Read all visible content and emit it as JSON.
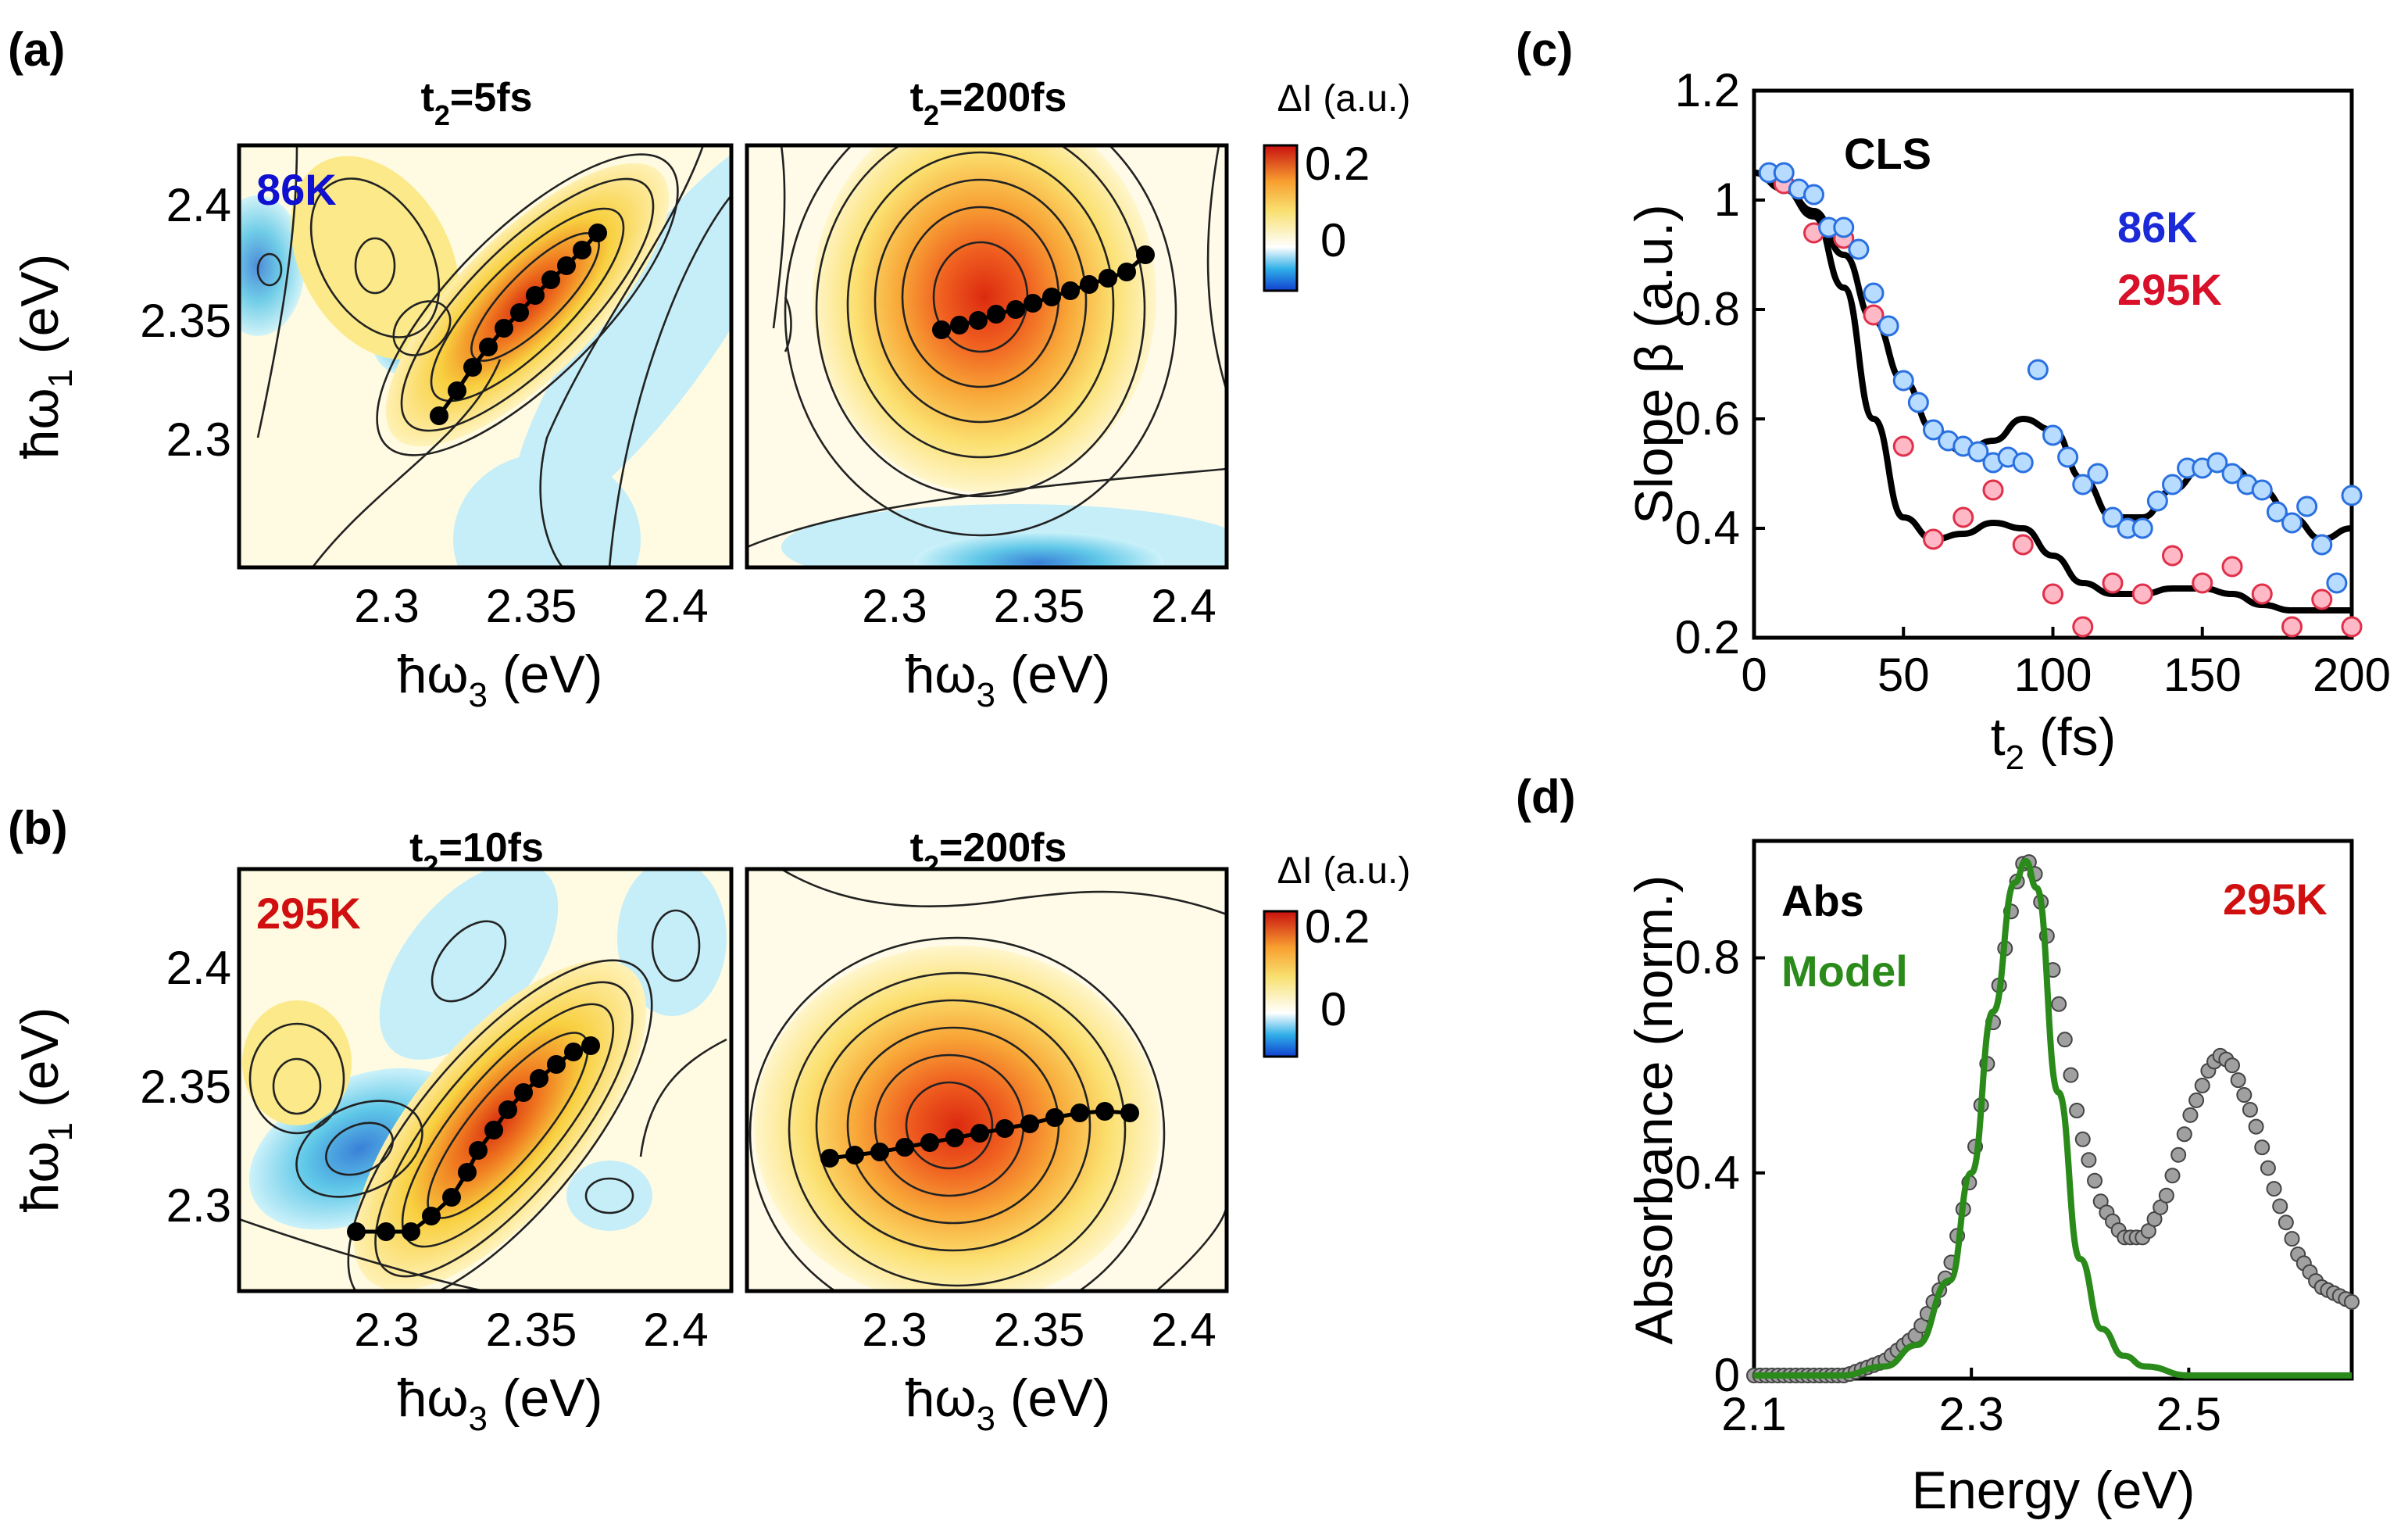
{
  "panels": {
    "a": {
      "label": "(a)",
      "titles": [
        "t",
        "=5fs",
        "t",
        "=200fs"
      ],
      "temp": "86K",
      "temp_color": "#1010d0",
      "colorbar_title": "ΔI (a.u.)",
      "colorbar_ticks": [
        "0.2",
        "0"
      ]
    },
    "b": {
      "label": "(b)",
      "titles": [
        "t",
        "=10fs",
        "t",
        "=200fs"
      ],
      "temp": "295K",
      "temp_color": "#d01010",
      "colorbar_title": "ΔI (a.u.)",
      "colorbar_ticks": [
        "0.2",
        "0"
      ]
    },
    "c": {
      "label": "(c)"
    },
    "d": {
      "label": "(d)"
    }
  },
  "twod_axes": {
    "y_ticks": [
      "2.4",
      "2.35",
      "2.3"
    ],
    "x_ticks": [
      "2.3",
      "2.35",
      "2.4"
    ],
    "y_label": "ħω",
    "y_label_sub": "1",
    "y_label_tail": " (eV)",
    "x_label": "ħω",
    "x_label_sub": "3",
    "x_label_tail": " (eV)",
    "sub2": "2"
  },
  "chart_data": [
    {
      "type": "scatter",
      "panel": "c",
      "annotation": "CLS",
      "xlabel": "t",
      "xlabel_sub": "2",
      "xlabel_tail": " (fs)",
      "ylabel": "Slope β (a.u.)",
      "xlim": [
        0,
        200
      ],
      "ylim": [
        0.2,
        1.2
      ],
      "x_ticks": [
        "0",
        "50",
        "100",
        "150",
        "200"
      ],
      "y_ticks": [
        "1.2",
        "1",
        "0.8",
        "0.6",
        "0.4",
        "0.2"
      ],
      "series": [
        {
          "name": "86K",
          "color": "#1a2ad8",
          "x": [
            5,
            10,
            15,
            20,
            25,
            30,
            35,
            40,
            45,
            50,
            55,
            60,
            65,
            70,
            75,
            80,
            85,
            90,
            95,
            100,
            105,
            110,
            115,
            120,
            125,
            130,
            135,
            140,
            145,
            150,
            155,
            160,
            165,
            170,
            175,
            180,
            185,
            190,
            195,
            200
          ],
          "y": [
            1.05,
            1.05,
            1.02,
            1.01,
            0.95,
            0.95,
            0.91,
            0.83,
            0.77,
            0.67,
            0.63,
            0.58,
            0.56,
            0.55,
            0.54,
            0.52,
            0.53,
            0.52,
            0.69,
            0.57,
            0.53,
            0.48,
            0.5,
            0.42,
            0.4,
            0.4,
            0.45,
            0.48,
            0.51,
            0.51,
            0.52,
            0.5,
            0.48,
            0.47,
            0.43,
            0.41,
            0.44,
            0.37,
            0.3,
            0.46
          ]
        },
        {
          "name": "295K",
          "color": "#d8102a",
          "x": [
            10,
            20,
            30,
            40,
            50,
            60,
            70,
            80,
            90,
            100,
            110,
            120,
            130,
            140,
            150,
            160,
            170,
            180,
            190,
            200
          ],
          "y": [
            1.03,
            0.94,
            0.93,
            0.79,
            0.55,
            0.38,
            0.42,
            0.47,
            0.37,
            0.28,
            0.22,
            0.3,
            0.28,
            0.35,
            0.3,
            0.33,
            0.28,
            0.22,
            0.27,
            0.22
          ]
        },
        {
          "name": "fit-86K",
          "color": "#000000",
          "x": [
            0,
            10,
            20,
            30,
            40,
            50,
            60,
            70,
            80,
            90,
            100,
            110,
            120,
            130,
            140,
            150,
            160,
            170,
            180,
            190,
            200
          ],
          "y": [
            1.05,
            1.02,
            0.98,
            0.9,
            0.78,
            0.67,
            0.58,
            0.54,
            0.56,
            0.6,
            0.58,
            0.49,
            0.42,
            0.42,
            0.47,
            0.51,
            0.51,
            0.47,
            0.42,
            0.38,
            0.4
          ]
        },
        {
          "name": "fit-295K",
          "color": "#000000",
          "x": [
            0,
            10,
            20,
            30,
            40,
            50,
            60,
            70,
            80,
            90,
            100,
            110,
            120,
            130,
            140,
            150,
            160,
            170,
            180,
            190,
            200
          ],
          "y": [
            1.05,
            1.02,
            0.97,
            0.84,
            0.6,
            0.42,
            0.38,
            0.39,
            0.41,
            0.4,
            0.35,
            0.3,
            0.28,
            0.28,
            0.29,
            0.29,
            0.28,
            0.26,
            0.25,
            0.25,
            0.25
          ]
        }
      ]
    },
    {
      "type": "line",
      "panel": "d",
      "temp": "295K",
      "xlabel": "Energy (eV)",
      "ylabel": "Absorbance (norm.)",
      "xlim": [
        2.1,
        2.65
      ],
      "ylim": [
        0,
        1.0
      ],
      "x_ticks": [
        "2.1",
        "2.3",
        "2.5"
      ],
      "y_ticks": [
        "0.8",
        "0.4",
        "0"
      ],
      "series": [
        {
          "name": "Abs",
          "color": "#777777",
          "style": "markers",
          "x": [
            2.1,
            2.14,
            2.18,
            2.22,
            2.25,
            2.28,
            2.3,
            2.32,
            2.34,
            2.35,
            2.36,
            2.38,
            2.4,
            2.42,
            2.44,
            2.46,
            2.48,
            2.5,
            2.52,
            2.53,
            2.54,
            2.56,
            2.58,
            2.6,
            2.62,
            2.65
          ],
          "y": [
            0.0,
            0.01,
            0.02,
            0.05,
            0.1,
            0.22,
            0.4,
            0.68,
            0.93,
            0.99,
            0.95,
            0.72,
            0.48,
            0.34,
            0.28,
            0.28,
            0.36,
            0.5,
            0.6,
            0.62,
            0.6,
            0.5,
            0.36,
            0.25,
            0.19,
            0.16
          ]
        },
        {
          "name": "Model",
          "color": "#2a8a1a",
          "style": "line",
          "x": [
            2.1,
            2.14,
            2.18,
            2.22,
            2.25,
            2.28,
            2.3,
            2.32,
            2.34,
            2.35,
            2.36,
            2.38,
            2.4,
            2.42,
            2.44,
            2.46,
            2.5,
            2.55,
            2.6,
            2.65
          ],
          "y": [
            0.0,
            0.01,
            0.02,
            0.04,
            0.08,
            0.2,
            0.4,
            0.7,
            0.94,
            0.98,
            0.93,
            0.55,
            0.24,
            0.11,
            0.06,
            0.04,
            0.02,
            0.01,
            0.0,
            0.0
          ]
        }
      ]
    }
  ]
}
